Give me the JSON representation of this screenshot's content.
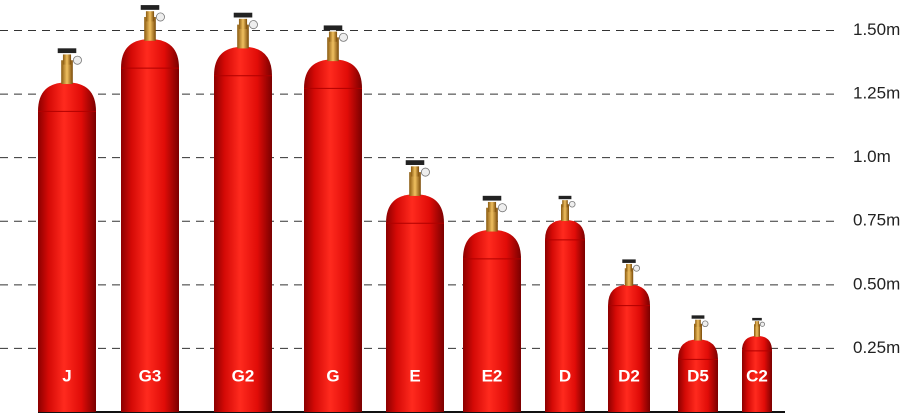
{
  "chart_data": {
    "type": "cylinder",
    "categories": [
      "J",
      "G3",
      "G2",
      "G",
      "E",
      "E2",
      "D",
      "D2",
      "D5",
      "C2"
    ],
    "values": [
      1.43,
      1.6,
      1.57,
      1.52,
      0.99,
      0.85,
      0.85,
      0.6,
      0.38,
      0.37
    ],
    "color": "#e8100c",
    "ylim": [
      0,
      1.62
    ],
    "yticks": [
      {
        "value": 0.25,
        "label": "0.25m"
      },
      {
        "value": 0.5,
        "label": "0.50m"
      },
      {
        "value": 0.75,
        "label": "0.75m"
      },
      {
        "value": 1.0,
        "label": "1.0m"
      },
      {
        "value": 1.25,
        "label": "1.25m"
      },
      {
        "value": 1.5,
        "label": "1.50m"
      }
    ],
    "grid": true
  }
}
